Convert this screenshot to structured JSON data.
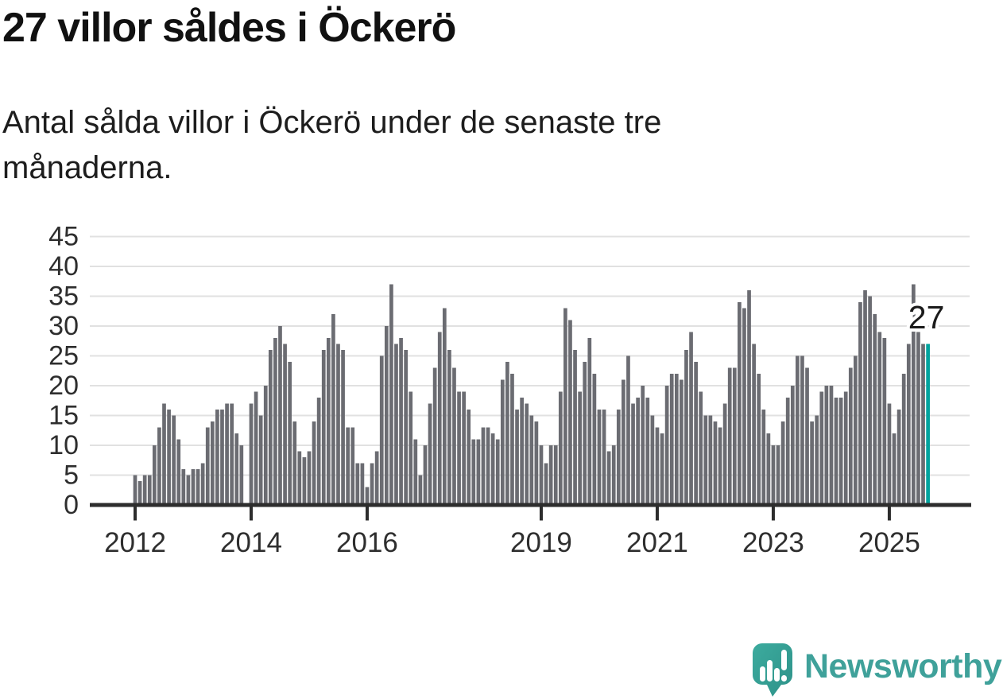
{
  "header": {
    "title": "27 villor såldes i Öckerö",
    "subtitle": "Antal sålda villor i Öckerö under de senaste tre månaderna."
  },
  "logo": {
    "text": "Newsworthy",
    "icon": "newsworthy-speech-bubble-bar-chart-icon"
  },
  "colors": {
    "bar": "#6b6c72",
    "highlight": "#00a39e",
    "grid": "#e1e1e1",
    "axis": "#2d2d2d",
    "tick_label": "#2e2e2e",
    "annotation_text": "#1b1b1b",
    "annotation_halo": "#ffffff",
    "logo_teal_light": "#3cab9e",
    "logo_teal_dark": "#2e9289"
  },
  "chart_data": {
    "type": "bar",
    "title": "27 villor såldes i Öckerö",
    "subtitle": "Antal sålda villor i Öckerö under de senaste tre månaderna.",
    "xlabel": "",
    "ylabel": "",
    "x_start_month": "2012-01",
    "x_end_month": "2025-09",
    "x_tick_years": [
      2012,
      2014,
      2016,
      2019,
      2021,
      2023,
      2025
    ],
    "y_ticks": [
      0,
      5,
      10,
      15,
      20,
      25,
      30,
      35,
      40,
      45
    ],
    "ylim": [
      0,
      45
    ],
    "grid": true,
    "legend_position": "none",
    "values": [
      5,
      4,
      5,
      5,
      10,
      13,
      17,
      16,
      15,
      11,
      6,
      5,
      6,
      6,
      7,
      13,
      14,
      16,
      16,
      17,
      17,
      12,
      10,
      0,
      17,
      19,
      15,
      20,
      26,
      28,
      30,
      27,
      24,
      14,
      9,
      8,
      9,
      14,
      18,
      26,
      28,
      32,
      27,
      26,
      13,
      13,
      7,
      7,
      3,
      7,
      9,
      25,
      30,
      37,
      27,
      28,
      26,
      19,
      11,
      5,
      10,
      17,
      23,
      29,
      33,
      26,
      23,
      19,
      19,
      16,
      11,
      11,
      13,
      13,
      12,
      11,
      21,
      24,
      22,
      16,
      18,
      17,
      15,
      14,
      10,
      7,
      10,
      10,
      19,
      33,
      31,
      26,
      19,
      24,
      28,
      22,
      16,
      16,
      9,
      10,
      16,
      21,
      25,
      17,
      18,
      20,
      18,
      15,
      13,
      12,
      20,
      22,
      22,
      21,
      26,
      29,
      24,
      19,
      15,
      15,
      14,
      13,
      17,
      23,
      23,
      34,
      33,
      36,
      27,
      22,
      16,
      12,
      10,
      10,
      14,
      18,
      20,
      25,
      25,
      23,
      14,
      15,
      19,
      20,
      20,
      18,
      18,
      19,
      23,
      25,
      34,
      36,
      35,
      32,
      29,
      28,
      17,
      12,
      16,
      22,
      27,
      37,
      29,
      27,
      27
    ],
    "highlight": {
      "index": 164,
      "label": "27",
      "value": 27,
      "month": "2025-09"
    }
  }
}
